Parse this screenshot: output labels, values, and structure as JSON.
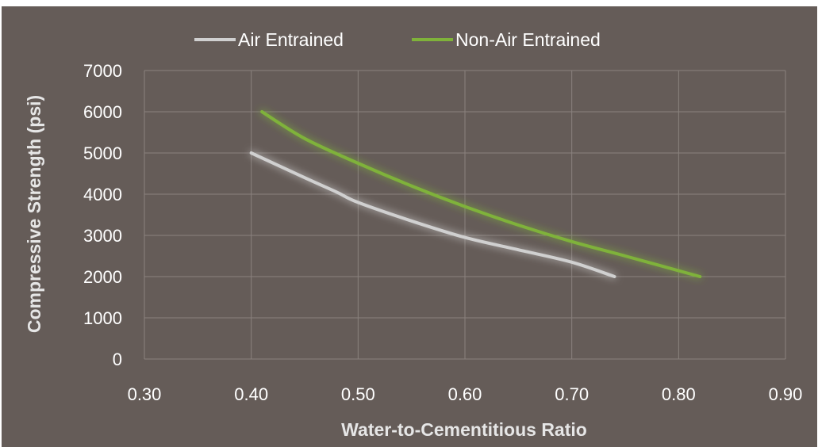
{
  "chart_data": {
    "type": "line",
    "title": "",
    "xlabel": "Water-to-Cementitious Ratio",
    "ylabel": "Compressive Strength (psi)",
    "xlim": [
      0.3,
      0.9
    ],
    "ylim": [
      0,
      7000
    ],
    "x_ticks": [
      "0.30",
      "0.40",
      "0.50",
      "0.60",
      "0.70",
      "0.80",
      "0.90"
    ],
    "y_ticks": [
      "0",
      "1000",
      "2000",
      "3000",
      "4000",
      "5000",
      "6000",
      "7000"
    ],
    "grid": true,
    "legend_position": "top",
    "series": [
      {
        "name": "Air Entrained",
        "color": "#d0d0d0",
        "x": [
          0.4,
          0.45,
          0.48,
          0.5,
          0.55,
          0.6,
          0.65,
          0.7,
          0.74
        ],
        "y": [
          5000,
          4400,
          4050,
          3800,
          3350,
          2950,
          2650,
          2350,
          2000
        ]
      },
      {
        "name": "Non-Air Entrained",
        "color": "#7fb23a",
        "x": [
          0.41,
          0.45,
          0.5,
          0.55,
          0.6,
          0.65,
          0.7,
          0.75,
          0.82
        ],
        "y": [
          6000,
          5350,
          4750,
          4200,
          3700,
          3250,
          2850,
          2500,
          2000
        ]
      }
    ]
  }
}
